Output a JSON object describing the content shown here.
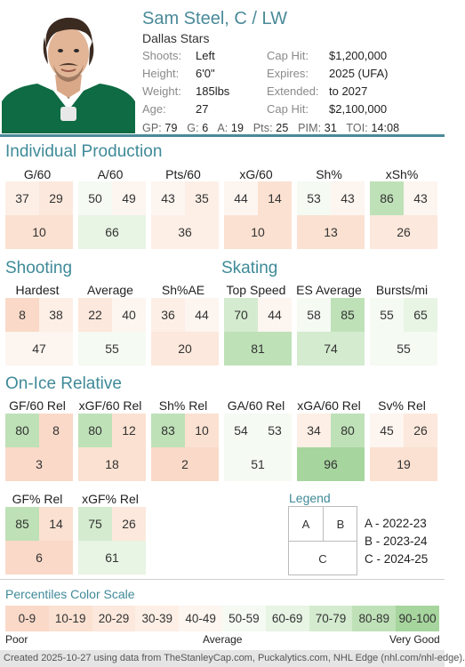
{
  "player": {
    "name": "Sam Steel, C / LW",
    "team": "Dallas Stars",
    "shoots_label": "Shoots:",
    "shoots": "Left",
    "height_label": "Height:",
    "height": "6'0\"",
    "weight_label": "Weight:",
    "weight": "185lbs",
    "age_label": "Age:",
    "age": "27",
    "caphit1_label": "Cap Hit:",
    "caphit1": "$1,200,000",
    "expires_label": "Expires:",
    "expires": "2025 (UFA)",
    "extended_label": "Extended:",
    "extended": "to 2027",
    "caphit2_label": "Cap Hit:",
    "caphit2": "$2,100,000"
  },
  "statline": {
    "gp_label": "GP:",
    "gp": "79",
    "g_label": "G:",
    "g": "6",
    "a_label": "A:",
    "a": "19",
    "pts_label": "Pts:",
    "pts": "25",
    "pim_label": "PIM:",
    "pim": "31",
    "toi_label": "TOI:",
    "toi": "14:08"
  },
  "colors": {
    "accent": "#4a8a99",
    "scale": [
      "#fad9c8",
      "#fbe1d1",
      "#fce8dc",
      "#fdefe6",
      "#fdf5f0",
      "#f5faf3",
      "#e8f4e4",
      "#d4ebcf",
      "#bfe1b8",
      "#a6d59e"
    ]
  },
  "sections": {
    "individual_production": {
      "title": "Individual Production",
      "cards": [
        {
          "label": "G/60",
          "a": 37,
          "b": 29,
          "c": 10
        },
        {
          "label": "A/60",
          "a": 50,
          "b": 49,
          "c": 66
        },
        {
          "label": "Pts/60",
          "a": 43,
          "b": 35,
          "c": 36
        },
        {
          "label": "xG/60",
          "a": 44,
          "b": 14,
          "c": 10
        },
        {
          "label": "Sh%",
          "a": 53,
          "b": 43,
          "c": 13
        },
        {
          "label": "xSh%",
          "a": 86,
          "b": 43,
          "c": 26
        }
      ]
    },
    "shooting": {
      "title": "Shooting",
      "cards": [
        {
          "label": "Hardest",
          "a": 8,
          "b": 38,
          "c": 47
        },
        {
          "label": "Average",
          "a": 22,
          "b": 40,
          "c": 55
        },
        {
          "label": "Sh%AE",
          "a": 36,
          "b": 44,
          "c": 20
        }
      ]
    },
    "skating": {
      "title": "Skating",
      "cards": [
        {
          "label": "Top Speed",
          "a": 70,
          "b": 44,
          "c": 81
        },
        {
          "label": "ES Average",
          "a": 58,
          "b": 85,
          "c": 74
        },
        {
          "label": "Bursts/mi",
          "a": 55,
          "b": 65,
          "c": 55
        }
      ]
    },
    "on_ice": {
      "title": "On-Ice Relative",
      "cards": [
        {
          "label": "GF/60 Rel",
          "a": 80,
          "b": 8,
          "c": 3
        },
        {
          "label": "xGF/60 Rel",
          "a": 80,
          "b": 12,
          "c": 18
        },
        {
          "label": "Sh% Rel",
          "a": 83,
          "b": 10,
          "c": 2
        },
        {
          "label": "GA/60 Rel",
          "a": 54,
          "b": 53,
          "c": 51
        },
        {
          "label": "xGA/60 Rel",
          "a": 34,
          "b": 80,
          "c": 96
        },
        {
          "label": "Sv% Rel",
          "a": 45,
          "b": 26,
          "c": 19
        },
        {
          "label": "GF% Rel",
          "a": 85,
          "b": 14,
          "c": 6
        },
        {
          "label": "xGF% Rel",
          "a": 75,
          "b": 26,
          "c": 61
        }
      ]
    }
  },
  "legend": {
    "title": "Legend",
    "cell_a": "A",
    "cell_b": "B",
    "cell_c": "C",
    "item_a": "A - 2022-23",
    "item_b": "B - 2023-24",
    "item_c": "C - 2024-25"
  },
  "scale": {
    "title": "Percentiles Color Scale",
    "labels": [
      "0-9",
      "10-19",
      "20-29",
      "30-39",
      "40-49",
      "50-59",
      "60-69",
      "70-79",
      "80-89",
      "90-100"
    ],
    "poor": "Poor",
    "average": "Average",
    "very_good": "Very Good"
  },
  "footer": "Created 2025-10-27 using data from TheStanleyCap.com, Puckalytics.com, NHL Edge (nhl.com/nhl-edge)."
}
